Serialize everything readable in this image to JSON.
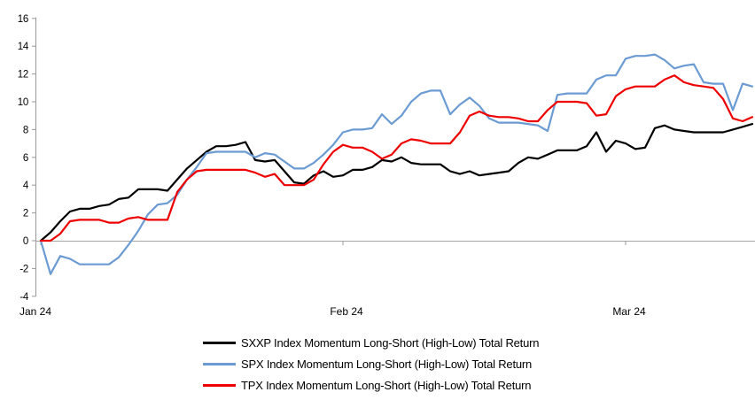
{
  "chart_data": {
    "type": "line",
    "title": "",
    "x_axis": {
      "unit": "day",
      "total_points": 74,
      "ticks": [
        {
          "label": "Jan 24",
          "day": 0
        },
        {
          "label": "Feb 24",
          "day": 31
        },
        {
          "label": "Mar 24",
          "day": 60
        }
      ]
    },
    "y_axis": {
      "min": -4,
      "max": 16,
      "step": 2,
      "tick_labels": [
        "16",
        "14",
        "12",
        "10",
        "8",
        "6",
        "4",
        "2",
        "0",
        "-2",
        "-4"
      ]
    },
    "grid": "zero-line-only",
    "legend_position": "bottom",
    "colors": {
      "axis": "#999999",
      "zero_line": "#a6a6a6",
      "sxxp": "#000000",
      "spx": "#6b9bd2",
      "tpx": "#ee0000"
    },
    "series": [
      {
        "name": "SXXP Index Momentum Long-Short (High-Low) Total Return",
        "color": "#000000",
        "values": [
          0,
          0.6,
          1.4,
          2.1,
          2.3,
          2.3,
          2.5,
          2.6,
          3.0,
          3.1,
          3.7,
          3.7,
          3.7,
          3.6,
          4.4,
          5.2,
          5.8,
          6.4,
          6.8,
          6.8,
          6.9,
          7.1,
          5.8,
          5.7,
          5.8,
          5.0,
          4.2,
          4.1,
          4.7,
          5.0,
          4.6,
          4.7,
          5.1,
          5.1,
          5.3,
          5.8,
          5.7,
          6.0,
          5.6,
          5.5,
          5.5,
          5.5,
          5.0,
          4.8,
          5.0,
          4.7,
          4.8,
          4.9,
          5.0,
          5.6,
          6.0,
          5.9,
          6.2,
          6.5,
          6.5,
          6.5,
          6.8,
          7.8,
          6.4,
          7.2,
          7.0,
          6.6,
          6.7,
          8.1,
          8.3,
          8.0,
          7.9,
          7.8,
          7.8,
          7.8,
          7.8,
          8.0,
          8.2,
          8.4
        ]
      },
      {
        "name": "SPX Index Momentum Long-Short (High-Low) Total Return",
        "color": "#6b9bd2",
        "values": [
          0,
          -2.4,
          -1.1,
          -1.3,
          -1.7,
          -1.7,
          -1.7,
          -1.7,
          -1.2,
          -0.3,
          0.7,
          1.9,
          2.6,
          2.7,
          3.3,
          4.4,
          5.3,
          6.3,
          6.4,
          6.4,
          6.4,
          6.4,
          6.0,
          6.3,
          6.2,
          5.7,
          5.2,
          5.2,
          5.6,
          6.2,
          6.9,
          7.8,
          8.0,
          8.0,
          8.1,
          9.1,
          8.4,
          9.0,
          10.0,
          10.6,
          10.8,
          10.8,
          9.1,
          9.8,
          10.3,
          9.7,
          8.8,
          8.5,
          8.5,
          8.5,
          8.4,
          8.3,
          7.9,
          10.5,
          10.6,
          10.6,
          10.6,
          11.6,
          11.9,
          11.9,
          13.1,
          13.3,
          13.3,
          13.4,
          13.0,
          12.4,
          12.6,
          12.7,
          11.4,
          11.3,
          11.3,
          9.4,
          11.3,
          11.1
        ]
      },
      {
        "name": "TPX Index Momentum Long-Short (High-Low) Total Return",
        "color": "#ee0000",
        "values": [
          0,
          0,
          0.5,
          1.4,
          1.5,
          1.5,
          1.5,
          1.3,
          1.3,
          1.6,
          1.7,
          1.5,
          1.5,
          1.5,
          3.5,
          4.4,
          5.0,
          5.1,
          5.1,
          5.1,
          5.1,
          5.1,
          4.9,
          4.6,
          4.8,
          4.0,
          4.0,
          4.0,
          4.4,
          5.5,
          6.4,
          6.9,
          6.7,
          6.7,
          6.4,
          5.9,
          6.2,
          7.0,
          7.3,
          7.2,
          7.0,
          7.0,
          7.0,
          7.8,
          9.0,
          9.3,
          9.0,
          8.9,
          8.9,
          8.8,
          8.6,
          8.6,
          9.4,
          10.0,
          10.0,
          10.0,
          9.9,
          9.0,
          9.1,
          10.4,
          10.9,
          11.1,
          11.1,
          11.1,
          11.6,
          11.9,
          11.4,
          11.2,
          11.1,
          11.0,
          10.2,
          8.8,
          8.6,
          8.9
        ]
      }
    ]
  }
}
